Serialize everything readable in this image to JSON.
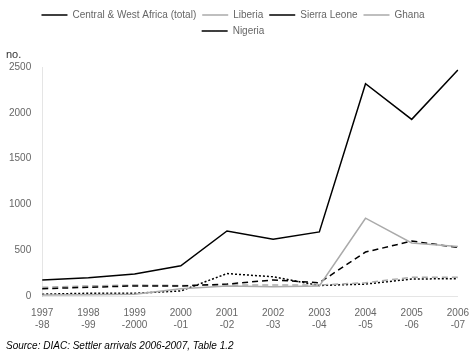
{
  "chart_data": {
    "type": "line",
    "categories": [
      "1997\n-98",
      "1998\n-99",
      "1999\n-2000",
      "2000\n-01",
      "2001\n-02",
      "2002\n-03",
      "2003\n-04",
      "2004\n-05",
      "2005\n-06",
      "2006\n-07"
    ],
    "series": [
      {
        "name": "Central & West Africa (total)",
        "color": "#000000",
        "line_style": "solid",
        "values": [
          175,
          200,
          240,
          330,
          710,
          620,
          700,
          2320,
          1930,
          2470
        ]
      },
      {
        "name": "Liberia",
        "color": "#aaaaaa",
        "line_style": "solid",
        "values": [
          10,
          15,
          20,
          80,
          110,
          100,
          110,
          850,
          580,
          540
        ]
      },
      {
        "name": "Sierra Leone",
        "color": "#000000",
        "line_style": "dashed",
        "values": [
          80,
          95,
          110,
          110,
          130,
          175,
          145,
          480,
          600,
          530
        ]
      },
      {
        "name": "Ghana",
        "color": "#aaaaaa",
        "line_style": "dashed",
        "values": [
          95,
          110,
          120,
          115,
          120,
          120,
          120,
          145,
          205,
          205
        ]
      },
      {
        "name": "Nigeria",
        "color": "#000000",
        "line_style": "dotted",
        "values": [
          20,
          30,
          30,
          55,
          245,
          210,
          115,
          130,
          185,
          190
        ]
      }
    ],
    "ylim": [
      0,
      2500
    ],
    "yticks": [
      0,
      500,
      1000,
      1500,
      2000,
      2500
    ],
    "grid": false,
    "legend": "top",
    "annotations": [
      "no.",
      "Source: DIAC: Settler arrivals 2006-2007, Table 1.2"
    ]
  }
}
